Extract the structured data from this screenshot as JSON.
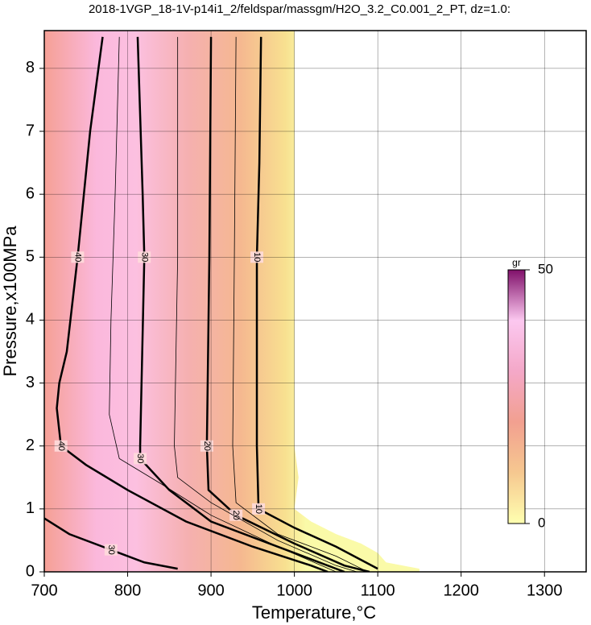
{
  "chart_data": {
    "type": "contour",
    "title": "2018-1VGP_18-1V-p14i1_2/feldspar/massgm/H2O_3.2_C0.001_2_PT, dz=1.0:",
    "xlabel": "Temperature,°C",
    "ylabel": "Pressure,x100MPa",
    "xlim": [
      700,
      1350
    ],
    "ylim": [
      0,
      8.6
    ],
    "xticks": [
      700,
      800,
      900,
      1000,
      1100,
      1200,
      1300
    ],
    "yticks": [
      0,
      1,
      2,
      3,
      4,
      5,
      6,
      7,
      8
    ],
    "grid": true,
    "field": {
      "x": [
        700,
        700,
        1000,
        1000,
        1005,
        1000,
        1020,
        1050,
        1080,
        1100,
        1110,
        1150,
        1150
      ],
      "y": [
        0,
        8.6,
        8.6,
        2.0,
        1.5,
        1.0,
        0.8,
        0.6,
        0.45,
        0.3,
        0.15,
        0.05,
        0
      ]
    },
    "contours": [
      {
        "level": 10,
        "major": true,
        "x": [
          960,
          958,
          955,
          955,
          957,
          1000,
          1050,
          1100
        ],
        "y": [
          8.5,
          6.5,
          5.0,
          2.0,
          1.0,
          0.7,
          0.4,
          0.05
        ]
      },
      {
        "level": 15,
        "major": false,
        "x": [
          930,
          928,
          926,
          930,
          980,
          1050,
          1085
        ],
        "y": [
          8.5,
          5.0,
          2.0,
          1.1,
          0.6,
          0.25,
          0.02
        ]
      },
      {
        "level": 20,
        "major": true,
        "x": [
          900,
          898,
          895,
          897,
          930,
          1000,
          1060,
          1090
        ],
        "y": [
          8.5,
          5.0,
          2.0,
          1.3,
          0.9,
          0.45,
          0.1,
          0.0
        ]
      },
      {
        "level": 25,
        "major": false,
        "x": [
          860,
          860,
          856,
          860,
          900,
          980,
          1050,
          1075
        ],
        "y": [
          8.5,
          5.0,
          2.0,
          1.5,
          1.1,
          0.5,
          0.1,
          0.0
        ]
      },
      {
        "level": 30,
        "major": true,
        "x": [
          812,
          818,
          820,
          815,
          815,
          850,
          900,
          1000,
          1060
        ],
        "y": [
          8.5,
          6.0,
          5.0,
          2.0,
          1.8,
          1.3,
          0.8,
          0.3,
          0.0
        ]
      },
      {
        "level": 35,
        "major": false,
        "x": [
          790,
          785,
          780,
          778,
          790,
          840,
          900,
          980,
          1050
        ],
        "y": [
          8.5,
          6.0,
          4.0,
          2.5,
          1.8,
          1.4,
          0.9,
          0.4,
          0.0
        ]
      },
      {
        "level": 40,
        "major": true,
        "x": [
          770,
          755,
          740,
          727,
          718,
          715,
          720,
          750,
          800,
          870,
          950,
          1020,
          1040
        ],
        "y": [
          8.5,
          7.0,
          5.0,
          3.5,
          3.0,
          2.6,
          2.0,
          1.7,
          1.3,
          0.8,
          0.4,
          0.1,
          0.0
        ]
      },
      {
        "level": 30,
        "major": true,
        "x": [
          700,
          730,
          780,
          820,
          860
        ],
        "y": [
          0.85,
          0.6,
          0.35,
          0.15,
          0.05
        ]
      }
    ],
    "colorbar": {
      "label": "gr",
      "clim": [
        0,
        50
      ],
      "cticks": [
        0,
        50
      ],
      "colors": [
        "#ffffb0",
        "#f6c890",
        "#f2a090",
        "#f4a8c8",
        "#fcc8f0",
        "#80106a"
      ]
    }
  }
}
